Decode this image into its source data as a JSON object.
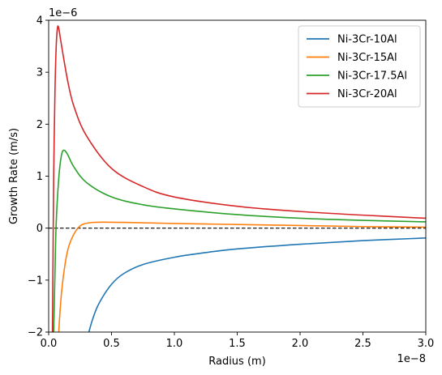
{
  "chart_data": {
    "type": "line",
    "xlabel": "Radius (m)",
    "ylabel": "Growth Rate (m/s)",
    "x_offset_label": "1e−8",
    "y_offset_label": "1e−6",
    "xlim": [
      0,
      3.0
    ],
    "ylim": [
      -2,
      4
    ],
    "x_unit_multiplier": 1e-08,
    "y_unit_multiplier": 1e-06,
    "x_ticks": [
      0,
      0.5,
      1.0,
      1.5,
      2.0,
      2.5,
      3.0
    ],
    "x_tick_labels": [
      "0.0",
      "0.5",
      "1.0",
      "1.5",
      "2.0",
      "2.5",
      "3.0"
    ],
    "y_ticks": [
      -2,
      -1,
      0,
      1,
      2,
      3,
      4
    ],
    "y_tick_labels": [
      "−2",
      "−1",
      "0",
      "1",
      "2",
      "3",
      "4"
    ],
    "grid": false,
    "legend_position": "top-right",
    "reference_line": {
      "y": 0,
      "style": "dashed",
      "color": "#000000"
    },
    "series": [
      {
        "name": "Ni-3Cr-10Al",
        "color": "#1f77b4",
        "points": [
          [
            0.32,
            -2.0
          ],
          [
            0.35,
            -1.75
          ],
          [
            0.4,
            -1.45
          ],
          [
            0.5,
            -1.08
          ],
          [
            0.6,
            -0.87
          ],
          [
            0.75,
            -0.7
          ],
          [
            1.0,
            -0.56
          ],
          [
            1.25,
            -0.47
          ],
          [
            1.5,
            -0.4
          ],
          [
            2.0,
            -0.31
          ],
          [
            2.5,
            -0.24
          ],
          [
            3.0,
            -0.19
          ]
        ]
      },
      {
        "name": "Ni-3Cr-15Al",
        "color": "#ff7f0e",
        "points": [
          [
            0.08,
            -2.0
          ],
          [
            0.1,
            -1.3
          ],
          [
            0.13,
            -0.7
          ],
          [
            0.16,
            -0.35
          ],
          [
            0.2,
            -0.12
          ],
          [
            0.24,
            0.02
          ],
          [
            0.28,
            0.08
          ],
          [
            0.35,
            0.11
          ],
          [
            0.45,
            0.115
          ],
          [
            0.6,
            0.11
          ],
          [
            1.0,
            0.09
          ],
          [
            1.5,
            0.07
          ],
          [
            2.0,
            0.05
          ],
          [
            2.5,
            0.03
          ],
          [
            3.0,
            0.02
          ]
        ]
      },
      {
        "name": "Ni-3Cr-17.5Al",
        "color": "#2ca02c",
        "points": [
          [
            0.04,
            -2.0
          ],
          [
            0.05,
            -0.9
          ],
          [
            0.06,
            0.1
          ],
          [
            0.08,
            0.95
          ],
          [
            0.1,
            1.38
          ],
          [
            0.12,
            1.5
          ],
          [
            0.15,
            1.42
          ],
          [
            0.2,
            1.18
          ],
          [
            0.3,
            0.88
          ],
          [
            0.5,
            0.6
          ],
          [
            0.75,
            0.45
          ],
          [
            1.0,
            0.37
          ],
          [
            1.5,
            0.26
          ],
          [
            2.0,
            0.19
          ],
          [
            2.5,
            0.15
          ],
          [
            3.0,
            0.12
          ]
        ]
      },
      {
        "name": "Ni-3Cr-20Al",
        "color": "#d62728",
        "points": [
          [
            0.03,
            -2.0
          ],
          [
            0.035,
            -0.5
          ],
          [
            0.04,
            1.0
          ],
          [
            0.05,
            2.6
          ],
          [
            0.06,
            3.5
          ],
          [
            0.07,
            3.85
          ],
          [
            0.08,
            3.85
          ],
          [
            0.1,
            3.55
          ],
          [
            0.15,
            2.85
          ],
          [
            0.2,
            2.35
          ],
          [
            0.3,
            1.78
          ],
          [
            0.5,
            1.15
          ],
          [
            0.75,
            0.8
          ],
          [
            1.0,
            0.6
          ],
          [
            1.5,
            0.42
          ],
          [
            2.0,
            0.32
          ],
          [
            2.5,
            0.25
          ],
          [
            3.0,
            0.19
          ]
        ]
      }
    ]
  }
}
